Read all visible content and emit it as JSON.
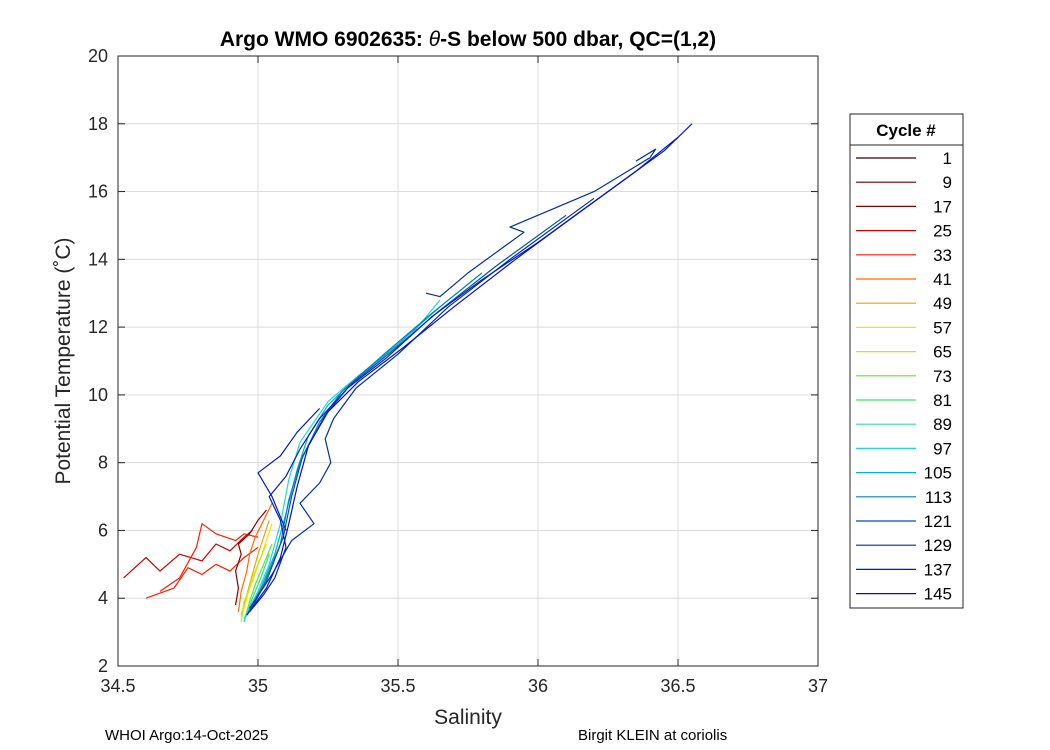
{
  "chart_data": {
    "type": "line",
    "title_prefix": "Argo WMO 6902635: ",
    "title_symbol": "θ",
    "title_suffix": "-S below 500 dbar,  QC=(1,2)",
    "xlabel": "Salinity",
    "ylabel": "Potential Temperature (˚C)",
    "xlim": [
      34.5,
      37
    ],
    "ylim": [
      2,
      20
    ],
    "xticks": [
      "34.5",
      "35",
      "35.5",
      "36",
      "36.5",
      "37"
    ],
    "yticks": [
      "2",
      "4",
      "6",
      "8",
      "10",
      "12",
      "14",
      "16",
      "18",
      "20"
    ],
    "grid": true,
    "legend": {
      "title": "Cycle #",
      "placement": "right-outside",
      "entries": [
        "1",
        "9",
        "17",
        "25",
        "33",
        "41",
        "49",
        "57",
        "65",
        "73",
        "81",
        "89",
        "97",
        "105",
        "113",
        "121",
        "129",
        "137",
        "145"
      ],
      "colors": [
        "#3a0000",
        "#620000",
        "#8c0000",
        "#c80000",
        "#ff1a00",
        "#ff6a00",
        "#e6a800",
        "#f2e600",
        "#b8ee10",
        "#5ee818",
        "#3ee860",
        "#28e0a0",
        "#20d8d8",
        "#00b0cc",
        "#0080c0",
        "#0050a8",
        "#00309a",
        "#001cc0",
        "#0010d0"
      ]
    },
    "series": [
      {
        "color": "#c80000",
        "points": [
          [
            34.52,
            4.6
          ],
          [
            34.6,
            5.2
          ],
          [
            34.65,
            4.8
          ],
          [
            34.72,
            5.3
          ],
          [
            34.8,
            5.1
          ],
          [
            34.85,
            5.6
          ],
          [
            34.9,
            5.4
          ],
          [
            34.95,
            5.8
          ],
          [
            34.98,
            6.0
          ]
        ]
      },
      {
        "color": "#ff1a00",
        "points": [
          [
            34.6,
            4.0
          ],
          [
            34.7,
            4.3
          ],
          [
            34.75,
            4.9
          ],
          [
            34.8,
            4.7
          ],
          [
            34.85,
            5.0
          ],
          [
            34.9,
            4.8
          ],
          [
            34.95,
            5.2
          ],
          [
            35.0,
            5.5
          ]
        ]
      },
      {
        "color": "#ff1a00",
        "points": [
          [
            34.65,
            4.2
          ],
          [
            34.72,
            4.6
          ],
          [
            34.78,
            5.5
          ],
          [
            34.8,
            6.2
          ],
          [
            34.85,
            5.9
          ],
          [
            34.92,
            5.7
          ],
          [
            34.95,
            5.9
          ],
          [
            35.0,
            5.8
          ]
        ]
      },
      {
        "color": "#8c0000",
        "points": [
          [
            34.92,
            3.8
          ],
          [
            34.93,
            4.3
          ],
          [
            34.92,
            4.8
          ],
          [
            34.94,
            5.3
          ],
          [
            34.93,
            5.6
          ],
          [
            34.97,
            5.9
          ],
          [
            35.0,
            6.3
          ],
          [
            35.03,
            6.6
          ]
        ]
      },
      {
        "color": "#ff6a00",
        "points": [
          [
            34.93,
            3.6
          ],
          [
            34.94,
            4.2
          ],
          [
            34.96,
            4.8
          ],
          [
            34.97,
            5.3
          ],
          [
            34.99,
            5.8
          ],
          [
            35.02,
            6.3
          ],
          [
            35.05,
            6.8
          ]
        ]
      },
      {
        "color": "#e6a800",
        "points": [
          [
            34.94,
            3.5
          ],
          [
            34.96,
            4.1
          ],
          [
            34.98,
            4.7
          ],
          [
            35.0,
            5.3
          ],
          [
            35.02,
            5.8
          ],
          [
            35.04,
            6.3
          ]
        ]
      },
      {
        "color": "#f2e600",
        "points": [
          [
            34.94,
            3.4
          ],
          [
            34.96,
            4.0
          ],
          [
            34.98,
            4.6
          ],
          [
            35.01,
            5.2
          ],
          [
            35.03,
            5.7
          ],
          [
            35.05,
            6.2
          ]
        ]
      },
      {
        "color": "#b8ee10",
        "points": [
          [
            34.94,
            3.3
          ],
          [
            34.95,
            3.9
          ],
          [
            34.98,
            4.5
          ],
          [
            35.0,
            5.0
          ],
          [
            35.03,
            5.6
          ]
        ]
      },
      {
        "color": "#5ee818",
        "points": [
          [
            34.95,
            3.3
          ],
          [
            34.97,
            3.9
          ],
          [
            34.99,
            4.4
          ],
          [
            35.02,
            5.0
          ],
          [
            35.05,
            5.6
          ]
        ]
      },
      {
        "color": "#28e0a0",
        "points": [
          [
            34.95,
            3.3
          ],
          [
            34.98,
            4.0
          ],
          [
            35.01,
            4.6
          ],
          [
            35.04,
            5.3
          ]
        ]
      },
      {
        "color": "#20d8d8",
        "points": [
          [
            34.95,
            3.4
          ],
          [
            35.0,
            4.2
          ],
          [
            35.04,
            5.0
          ],
          [
            35.08,
            6.2
          ],
          [
            35.11,
            7.5
          ],
          [
            35.15,
            8.6
          ],
          [
            35.2,
            9.2
          ],
          [
            35.25,
            9.8
          ],
          [
            35.32,
            10.3
          ],
          [
            35.4,
            10.8
          ],
          [
            35.55,
            11.8
          ],
          [
            35.65,
            12.8
          ]
        ]
      },
      {
        "color": "#00b0cc",
        "points": [
          [
            34.96,
            3.5
          ],
          [
            35.01,
            4.3
          ],
          [
            35.06,
            5.3
          ],
          [
            35.1,
            6.5
          ],
          [
            35.14,
            7.8
          ],
          [
            35.18,
            8.8
          ],
          [
            35.25,
            9.7
          ],
          [
            35.35,
            10.5
          ],
          [
            35.5,
            11.5
          ],
          [
            35.65,
            12.6
          ]
        ]
      },
      {
        "color": "#0080c0",
        "points": [
          [
            34.96,
            3.5
          ],
          [
            35.02,
            4.4
          ],
          [
            35.08,
            5.6
          ],
          [
            35.11,
            6.9
          ],
          [
            35.15,
            8.0
          ],
          [
            35.22,
            9.2
          ],
          [
            35.3,
            10.1
          ],
          [
            35.45,
            11.2
          ],
          [
            35.62,
            12.4
          ],
          [
            35.8,
            13.6
          ]
        ]
      },
      {
        "color": "#0050a8",
        "points": [
          [
            34.97,
            3.6
          ],
          [
            35.03,
            4.5
          ],
          [
            35.09,
            5.8
          ],
          [
            35.12,
            7.0
          ],
          [
            35.16,
            8.2
          ],
          [
            35.24,
            9.4
          ],
          [
            35.33,
            10.3
          ],
          [
            35.48,
            11.3
          ],
          [
            35.65,
            12.5
          ],
          [
            35.85,
            13.8
          ],
          [
            36.1,
            15.3
          ]
        ]
      },
      {
        "color": "#00309a",
        "points": [
          [
            34.97,
            3.7
          ],
          [
            35.05,
            4.7
          ],
          [
            35.12,
            5.7
          ],
          [
            35.2,
            6.2
          ],
          [
            35.15,
            6.8
          ],
          [
            35.22,
            7.4
          ],
          [
            35.26,
            8.0
          ],
          [
            35.24,
            8.7
          ],
          [
            35.27,
            9.3
          ],
          [
            35.35,
            10.2
          ],
          [
            35.5,
            11.2
          ],
          [
            35.68,
            12.6
          ],
          [
            35.9,
            14.0
          ],
          [
            36.2,
            15.8
          ]
        ]
      },
      {
        "color": "#001cc0",
        "points": [
          [
            34.97,
            3.6
          ],
          [
            35.02,
            4.1
          ],
          [
            35.06,
            4.6
          ],
          [
            35.1,
            5.5
          ],
          [
            35.08,
            6.3
          ],
          [
            35.04,
            7.0
          ],
          [
            35.1,
            7.6
          ],
          [
            35.15,
            8.4
          ],
          [
            35.22,
            9.3
          ],
          [
            35.32,
            10.2
          ],
          [
            35.46,
            11.1
          ],
          [
            35.62,
            12.3
          ],
          [
            35.8,
            13.4
          ],
          [
            36.0,
            14.5
          ],
          [
            36.25,
            16.0
          ],
          [
            36.45,
            17.2
          ],
          [
            36.55,
            18.0
          ]
        ]
      },
      {
        "color": "#0010d0",
        "points": [
          [
            34.96,
            3.5
          ],
          [
            35.03,
            4.3
          ],
          [
            35.08,
            5.2
          ],
          [
            35.11,
            6.2
          ],
          [
            35.14,
            7.3
          ],
          [
            35.18,
            8.5
          ],
          [
            35.25,
            9.5
          ],
          [
            35.36,
            10.4
          ],
          [
            35.52,
            11.4
          ],
          [
            35.7,
            12.6
          ],
          [
            35.92,
            14.0
          ],
          [
            36.15,
            15.4
          ],
          [
            36.35,
            16.6
          ],
          [
            36.5,
            17.6
          ]
        ]
      },
      {
        "color": "#001cc0",
        "points": [
          [
            35.1,
            6.0
          ],
          [
            35.05,
            7.0
          ],
          [
            35.0,
            7.7
          ],
          [
            35.08,
            8.2
          ],
          [
            35.14,
            8.9
          ],
          [
            35.22,
            9.6
          ]
        ]
      },
      {
        "color": "#00309a",
        "points": [
          [
            35.6,
            13.0
          ],
          [
            35.65,
            12.9
          ],
          [
            35.75,
            13.6
          ],
          [
            35.95,
            14.8
          ],
          [
            35.9,
            14.95
          ],
          [
            36.2,
            16.0
          ],
          [
            36.4,
            17.0
          ],
          [
            36.42,
            17.25
          ],
          [
            36.35,
            16.9
          ]
        ]
      }
    ]
  },
  "footer": {
    "left": "WHOI Argo:14-Oct-2025",
    "right": "Birgit KLEIN at coriolis"
  }
}
